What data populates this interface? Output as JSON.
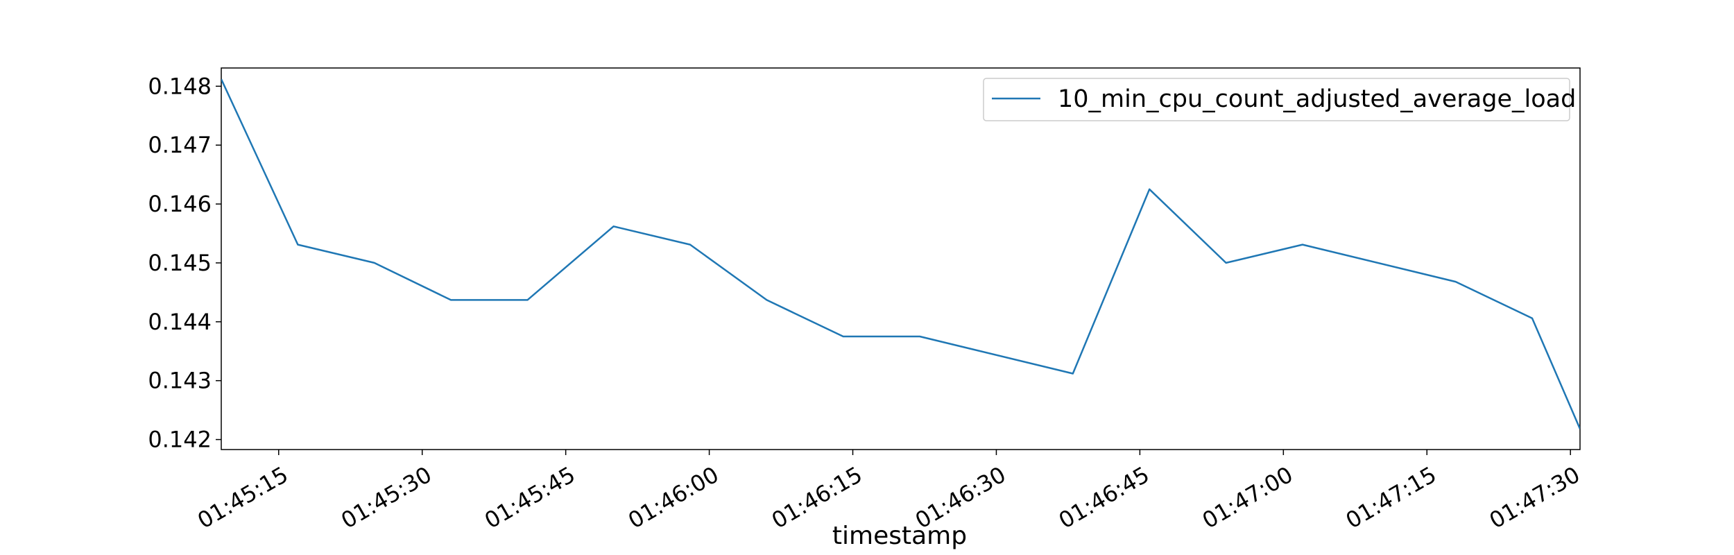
{
  "chart_data": {
    "type": "line",
    "title": "",
    "xlabel": "timestamp",
    "ylabel": "",
    "x_unit": "time (HH:MM:SS)",
    "xlim": [
      "01:45:09",
      "01:47:31"
    ],
    "ylim": [
      0.14183,
      0.14831
    ],
    "x_ticks": [
      "01:45:15",
      "01:45:30",
      "01:45:45",
      "01:46:00",
      "01:46:15",
      "01:46:30",
      "01:46:45",
      "01:47:00",
      "01:47:15",
      "01:47:30"
    ],
    "y_ticks": [
      0.142,
      0.143,
      0.144,
      0.145,
      0.146,
      0.147,
      0.148
    ],
    "y_tick_labels": [
      "0.142",
      "0.143",
      "0.144",
      "0.145",
      "0.146",
      "0.147",
      "0.148"
    ],
    "grid": false,
    "legend_position": "top-right",
    "series": [
      {
        "name": "10_min_cpu_count_adjusted_average_load",
        "color": "#1f77b4",
        "x": [
          "01:45:09",
          "01:45:17",
          "01:45:25",
          "01:45:33",
          "01:45:41",
          "01:45:50",
          "01:45:58",
          "01:46:06",
          "01:46:14",
          "01:46:22",
          "01:46:38",
          "01:46:46",
          "01:46:54",
          "01:47:02",
          "01:47:18",
          "01:47:26",
          "01:47:31"
        ],
        "y": [
          0.14812,
          0.14531,
          0.145,
          0.14437,
          0.14437,
          0.14562,
          0.14531,
          0.14437,
          0.14375,
          0.14375,
          0.14312,
          0.14625,
          0.145,
          0.14531,
          0.14468,
          0.14406,
          0.14218
        ]
      }
    ]
  }
}
